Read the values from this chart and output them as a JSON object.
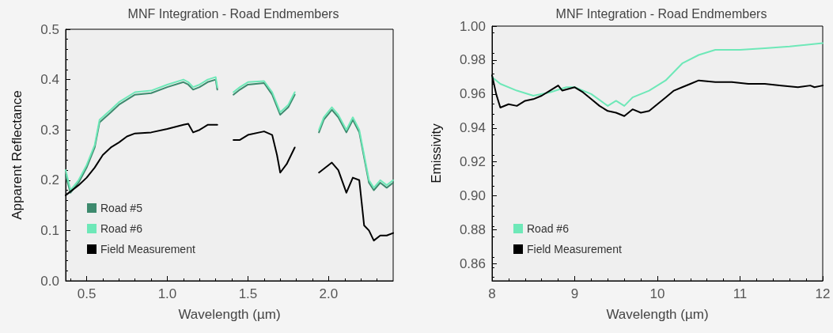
{
  "chart_data": [
    {
      "type": "line",
      "title": "MNF Integration - Road Endmembers",
      "xlabel": "Wavelength (µm)",
      "ylabel": "Apparent Reflectance",
      "xlim": [
        0.37,
        2.4
      ],
      "xticks": [
        {
          "value": 0.5,
          "label": "0.5"
        },
        {
          "value": 1.0,
          "label": "1.0"
        },
        {
          "value": 1.5,
          "label": "1.5"
        },
        {
          "value": 2.0,
          "label": "2.0"
        }
      ],
      "ylim": [
        0,
        0.5
      ],
      "yticks": [
        {
          "value": 0,
          "label": "0.0"
        },
        0.1,
        0.2,
        0.3,
        0.4,
        0.5
      ],
      "grid": false,
      "legend": "bottom left",
      "series": [
        {
          "name": "Road #5",
          "color": "#3d8a6e",
          "x": [
            0.37,
            0.4,
            0.45,
            0.5,
            0.55,
            0.58,
            0.65,
            0.7,
            0.8,
            0.9,
            1.0,
            1.1,
            1.13,
            1.16,
            1.2,
            1.25,
            1.3,
            1.31,
            1.35,
            1.41,
            1.45,
            1.5,
            1.6,
            1.65,
            1.7,
            1.75,
            1.79,
            1.85,
            1.94,
            1.97,
            2.02,
            2.06,
            2.11,
            2.15,
            2.19,
            2.25,
            2.28,
            2.32,
            2.36,
            2.4
          ],
          "values": [
            0.21,
            0.175,
            0.195,
            0.225,
            0.265,
            0.315,
            0.335,
            0.35,
            0.37,
            0.373,
            0.385,
            0.395,
            0.39,
            0.38,
            0.385,
            0.395,
            0.4,
            0.38,
            null,
            0.37,
            0.38,
            0.39,
            0.393,
            0.37,
            0.33,
            0.345,
            0.37,
            null,
            0.295,
            0.32,
            0.34,
            0.325,
            0.295,
            0.32,
            0.295,
            0.195,
            0.18,
            0.195,
            0.185,
            0.195
          ]
        },
        {
          "name": "Road #6",
          "color": "#6ee8b8",
          "x": [
            0.37,
            0.4,
            0.45,
            0.5,
            0.55,
            0.58,
            0.65,
            0.7,
            0.8,
            0.9,
            1.0,
            1.1,
            1.13,
            1.16,
            1.2,
            1.25,
            1.3,
            1.31,
            1.35,
            1.41,
            1.45,
            1.5,
            1.6,
            1.65,
            1.7,
            1.75,
            1.79,
            1.85,
            1.94,
            1.97,
            2.02,
            2.06,
            2.11,
            2.15,
            2.19,
            2.25,
            2.28,
            2.32,
            2.36,
            2.4
          ],
          "values": [
            0.22,
            0.18,
            0.2,
            0.23,
            0.27,
            0.32,
            0.34,
            0.355,
            0.375,
            0.378,
            0.39,
            0.4,
            0.395,
            0.385,
            0.39,
            0.4,
            0.405,
            0.385,
            null,
            0.375,
            0.385,
            0.395,
            0.397,
            0.375,
            0.335,
            0.35,
            0.375,
            null,
            0.3,
            0.325,
            0.345,
            0.33,
            0.3,
            0.325,
            0.3,
            0.2,
            0.185,
            0.2,
            0.19,
            0.2
          ]
        },
        {
          "name": "Field Measurement",
          "color": "#000000",
          "x": [
            0.37,
            0.45,
            0.5,
            0.55,
            0.6,
            0.65,
            0.7,
            0.75,
            0.8,
            0.9,
            1.0,
            1.1,
            1.13,
            1.16,
            1.2,
            1.25,
            1.31,
            1.35,
            1.41,
            1.45,
            1.5,
            1.6,
            1.65,
            1.68,
            1.7,
            1.74,
            1.79,
            1.85,
            1.94,
            2.02,
            2.06,
            2.11,
            2.15,
            2.19,
            2.22,
            2.25,
            2.28,
            2.32,
            2.36,
            2.4
          ],
          "values": [
            0.17,
            0.19,
            0.205,
            0.225,
            0.25,
            0.265,
            0.275,
            0.287,
            0.293,
            0.295,
            0.302,
            0.31,
            0.312,
            0.295,
            0.3,
            0.31,
            0.31,
            null,
            0.28,
            0.28,
            0.29,
            0.297,
            0.29,
            0.25,
            0.215,
            0.232,
            0.265,
            null,
            0.215,
            0.235,
            0.22,
            0.175,
            0.205,
            0.2,
            0.11,
            0.1,
            0.08,
            0.09,
            0.09,
            0.095
          ]
        }
      ]
    },
    {
      "type": "line",
      "title": "MNF Integration - Road Endmembers",
      "xlabel": "Wavelength (µm)",
      "ylabel": "Emissivity",
      "xlim": [
        8,
        12
      ],
      "xticks": [
        8,
        9,
        10,
        11,
        12
      ],
      "ylim": [
        0.85,
        1.0
      ],
      "yticks": [
        0.86,
        0.88,
        {
          "value": 0.9,
          "label": "0.90"
        },
        0.92,
        0.94,
        0.96,
        0.98,
        {
          "value": 1.0,
          "label": "1.00"
        }
      ],
      "grid": false,
      "legend": "bottom left",
      "series": [
        {
          "name": "Road #6",
          "color": "#6ee8b8",
          "x": [
            8.0,
            8.1,
            8.3,
            8.5,
            8.7,
            8.9,
            9.0,
            9.2,
            9.4,
            9.5,
            9.6,
            9.7,
            9.9,
            10.1,
            10.3,
            10.5,
            10.7,
            11.0,
            11.3,
            11.6,
            12.0
          ],
          "values": [
            0.97,
            0.966,
            0.962,
            0.959,
            0.961,
            0.964,
            0.964,
            0.96,
            0.953,
            0.956,
            0.953,
            0.958,
            0.962,
            0.968,
            0.978,
            0.983,
            0.986,
            0.986,
            0.987,
            0.988,
            0.99
          ]
        },
        {
          "name": "Field Measurement",
          "color": "#000000",
          "x": [
            8.0,
            8.05,
            8.1,
            8.2,
            8.3,
            8.4,
            8.5,
            8.6,
            8.7,
            8.8,
            8.85,
            9.0,
            9.1,
            9.2,
            9.3,
            9.4,
            9.5,
            9.6,
            9.7,
            9.8,
            9.9,
            10.0,
            10.1,
            10.2,
            10.3,
            10.4,
            10.5,
            10.7,
            10.9,
            11.1,
            11.3,
            11.5,
            11.7,
            11.85,
            11.9,
            12.0
          ],
          "values": [
            0.971,
            0.96,
            0.952,
            0.954,
            0.953,
            0.956,
            0.957,
            0.959,
            0.962,
            0.965,
            0.962,
            0.964,
            0.961,
            0.957,
            0.953,
            0.95,
            0.949,
            0.947,
            0.951,
            0.949,
            0.95,
            0.954,
            0.958,
            0.962,
            0.964,
            0.966,
            0.968,
            0.967,
            0.967,
            0.966,
            0.966,
            0.965,
            0.964,
            0.965,
            0.964,
            0.965
          ]
        }
      ]
    }
  ]
}
